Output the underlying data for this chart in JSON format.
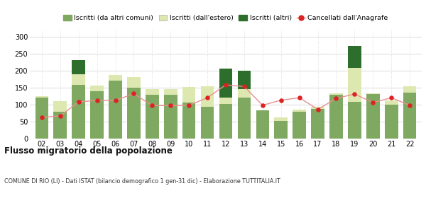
{
  "years": [
    "02",
    "03",
    "04",
    "05",
    "06",
    "07",
    "08",
    "09",
    "10",
    "11",
    "12",
    "13",
    "14",
    "15",
    "16",
    "17",
    "18",
    "19",
    "20",
    "21",
    "22"
  ],
  "iscritti_altri_comuni": [
    120,
    80,
    157,
    140,
    170,
    150,
    128,
    128,
    107,
    93,
    101,
    120,
    83,
    52,
    80,
    88,
    128,
    108,
    130,
    99,
    135
  ],
  "iscritti_estero": [
    5,
    30,
    33,
    15,
    18,
    30,
    18,
    17,
    45,
    60,
    19,
    25,
    0,
    10,
    5,
    5,
    5,
    100,
    2,
    13,
    18
  ],
  "iscritti_altri": [
    0,
    0,
    40,
    0,
    0,
    0,
    0,
    0,
    0,
    0,
    85,
    55,
    0,
    0,
    0,
    0,
    0,
    65,
    0,
    0,
    0
  ],
  "cancellati": [
    62,
    67,
    108,
    112,
    112,
    132,
    97,
    97,
    98,
    120,
    158,
    153,
    98,
    113,
    120,
    86,
    118,
    131,
    106,
    120,
    98
  ],
  "color_altri_comuni": "#7fa860",
  "color_estero": "#dde8b0",
  "color_altri": "#2d6e2d",
  "color_cancellati": "#dd2222",
  "color_cancellati_line": "#e89090",
  "bg_color": "#ffffff",
  "grid_color": "#cccccc",
  "title": "Flusso migratorio della popolazione",
  "subtitle": "COMUNE DI RIO (LI) - Dati ISTAT (bilancio demografico 1 gen-31 dic) - Elaborazione TUTTITALIA.IT",
  "legend_labels": [
    "Iscritti (da altri comuni)",
    "Iscritti (dall'estero)",
    "Iscritti (altri)",
    "Cancellati dall'Anagrafe"
  ],
  "ylim": [
    0,
    320
  ],
  "yticks": [
    0,
    50,
    100,
    150,
    200,
    250,
    300
  ]
}
